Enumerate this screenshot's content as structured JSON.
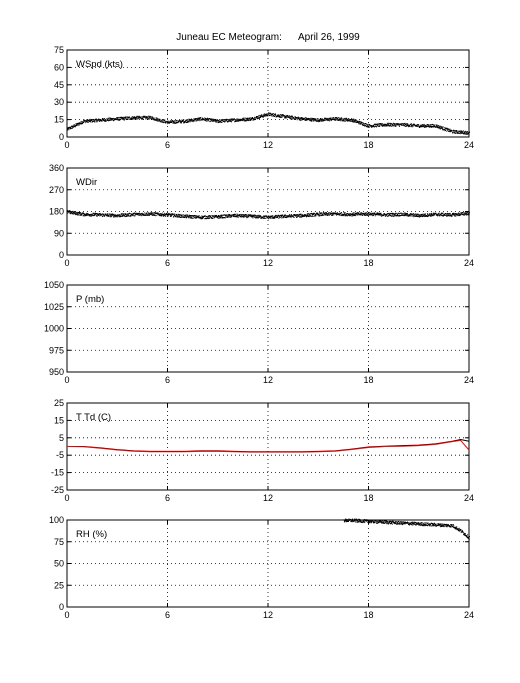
{
  "title": "Juneau EC Meteogram:      April 26, 1999",
  "colors": {
    "obs": "#000000",
    "dewpoint": "#ff0000",
    "grid": "#000000"
  },
  "chart_data": [
    {
      "type": "scatter",
      "label": "WSpd (kts)",
      "xlim": [
        0,
        24
      ],
      "ylim": [
        0,
        75
      ],
      "xticks": [
        "0",
        "6",
        "12",
        "18",
        "24"
      ],
      "yticks": [
        "0",
        "15",
        "30",
        "45",
        "60",
        "75"
      ],
      "grid": true,
      "series": [
        {
          "x": [
            0,
            1,
            2,
            3,
            4,
            5,
            6,
            7,
            8,
            9,
            10,
            11,
            12,
            13,
            14,
            15,
            16,
            17,
            18,
            19,
            20,
            21,
            22,
            23,
            24
          ],
          "values": [
            7,
            14,
            15,
            16,
            17,
            17,
            13,
            14,
            16,
            14,
            15,
            16,
            20,
            18,
            16,
            15,
            16,
            15,
            10,
            11,
            11,
            10,
            10,
            5,
            4
          ]
        }
      ]
    },
    {
      "type": "scatter",
      "label": "WDir",
      "xlim": [
        0,
        24
      ],
      "ylim": [
        0,
        360
      ],
      "xticks": [
        "0",
        "6",
        "12",
        "18",
        "24"
      ],
      "yticks": [
        "0",
        "90",
        "180",
        "270",
        "360"
      ],
      "grid": true,
      "series": [
        {
          "x": [
            0,
            1,
            2,
            3,
            4,
            5,
            6,
            7,
            8,
            9,
            10,
            11,
            12,
            13,
            14,
            15,
            16,
            17,
            18,
            19,
            20,
            21,
            22,
            23,
            24
          ],
          "values": [
            180,
            170,
            168,
            165,
            170,
            172,
            168,
            162,
            158,
            160,
            165,
            162,
            158,
            162,
            165,
            170,
            172,
            170,
            172,
            168,
            170,
            165,
            170,
            168,
            175
          ]
        }
      ]
    },
    {
      "type": "line",
      "label": "P (mb)",
      "xlim": [
        0,
        24
      ],
      "ylim": [
        950,
        1050
      ],
      "xticks": [
        "0",
        "6",
        "12",
        "18",
        "24"
      ],
      "yticks": [
        "950",
        "975",
        "1000",
        "1025",
        "1050"
      ],
      "grid": true,
      "series": []
    },
    {
      "type": "line",
      "label": "T Td (C)",
      "xlim": [
        0,
        24
      ],
      "ylim": [
        -25,
        25
      ],
      "xticks": [
        "0",
        "6",
        "12",
        "18",
        "24"
      ],
      "yticks": [
        "-25",
        "-15",
        "-5",
        "5",
        "15",
        "25"
      ],
      "grid": true,
      "series": [
        {
          "x": [
            0,
            1,
            2,
            3,
            4,
            5,
            6,
            7,
            8,
            9,
            10,
            11,
            12,
            13,
            14,
            15,
            16,
            17,
            18,
            19,
            20,
            21,
            22,
            23,
            23.5,
            24
          ],
          "values": [
            0,
            0,
            -0.8,
            -1.8,
            -2.5,
            -2.8,
            -2.8,
            -2.8,
            -2.5,
            -2.5,
            -2.8,
            -3,
            -3,
            -3,
            -3,
            -2.8,
            -2.5,
            -1.5,
            -0.3,
            0.2,
            0.5,
            0.8,
            1.5,
            3,
            4,
            3
          ]
        },
        {
          "x": [
            0,
            1,
            2,
            3,
            4,
            5,
            6,
            7,
            8,
            9,
            10,
            11,
            12,
            13,
            14,
            15,
            16,
            17,
            18,
            19,
            20,
            21,
            22,
            23,
            23.5,
            24
          ],
          "values": [
            0,
            -0.2,
            -1,
            -2,
            -2.7,
            -3,
            -3,
            -3,
            -2.8,
            -2.8,
            -3,
            -3.2,
            -3.2,
            -3.2,
            -3.2,
            -3,
            -2.7,
            -1.7,
            -0.6,
            0,
            0.2,
            0.5,
            1.2,
            2.8,
            3.5,
            -2
          ]
        }
      ]
    },
    {
      "type": "scatter",
      "label": "RH (%)",
      "xlim": [
        0,
        24
      ],
      "ylim": [
        0,
        100
      ],
      "xticks": [
        "0",
        "6",
        "12",
        "18",
        "24"
      ],
      "yticks": [
        "0",
        "25",
        "50",
        "75",
        "100"
      ],
      "grid": true,
      "series": [
        {
          "x": [
            16.5,
            17,
            18,
            19,
            20,
            21,
            22,
            23,
            23.5,
            24
          ],
          "values": [
            100,
            100,
            99,
            98,
            97,
            96,
            95,
            94,
            88,
            80
          ]
        }
      ]
    }
  ]
}
